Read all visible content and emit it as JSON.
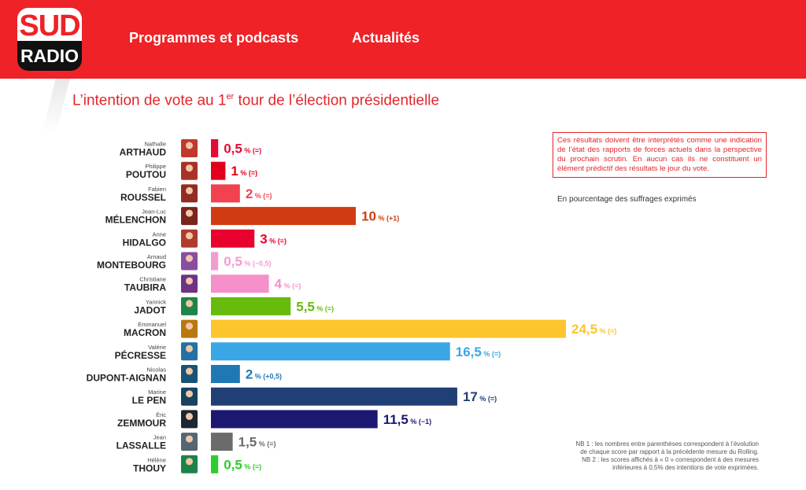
{
  "header": {
    "logo_top": "SUD",
    "logo_bottom": "RADIO",
    "nav": [
      "Programmes et podcasts",
      "Actualités"
    ]
  },
  "colors": {
    "brand": "#ee2227",
    "title": "#e2262b"
  },
  "notes": {
    "disclaimer": "Ces résultats doivent être interprétés comme une indication de l’état des rapports de forces actuels dans la perspective du prochain scrutin. En aucun cas ils ne constituent un élément prédictif des résultats le jour du vote.",
    "unit": "En pourcentage des suffrages exprimés",
    "nb1_line1": "NB 1 : les nombres entre parenthèses correspondent à l’évolution",
    "nb1_line2": "de chaque score par rapport à la précédente mesure du Rolling.",
    "nb2_line1": "NB 2 : les scores affichés à « 0 » correspondent à des mesures",
    "nb2_line2": "inférieures à 0,5% des intentions de vote exprimées."
  },
  "chart_data": {
    "type": "bar",
    "orientation": "horizontal",
    "title_pre": "L’intention de vote au 1",
    "title_sup": "er",
    "title_post": " tour de l’élection présidentielle",
    "xlim": [
      0,
      24.5
    ],
    "bars": [
      {
        "first": "Nathalie",
        "last": "ARTHAUD",
        "value": 0.5,
        "label": "0,5",
        "change": "(=)",
        "color": "#e30b33",
        "avatar_bg": "#c0392b"
      },
      {
        "first": "Philippe",
        "last": "POUTOU",
        "value": 1,
        "label": "1",
        "change": "(=)",
        "color": "#e3001b",
        "avatar_bg": "#a93226"
      },
      {
        "first": "Fabien",
        "last": "ROUSSEL",
        "value": 2,
        "label": "2",
        "change": "(=)",
        "color": "#f2424f",
        "avatar_bg": "#922b21"
      },
      {
        "first": "Jean-Luc",
        "last": "MÉLENCHON",
        "value": 10,
        "label": "10",
        "change": "(+1)",
        "color": "#d13b12",
        "avatar_bg": "#7b241c"
      },
      {
        "first": "Anne",
        "last": "HIDALGO",
        "value": 3,
        "label": "3",
        "change": "(=)",
        "color": "#e8002e",
        "avatar_bg": "#b03a2e"
      },
      {
        "first": "Arnaud",
        "last": "MONTEBOURG",
        "value": 0.5,
        "label": "0,5",
        "change": "(−0,5)",
        "color": "#f29ccf",
        "avatar_bg": "#884ea0"
      },
      {
        "first": "Christiane",
        "last": "TAUBIRA",
        "value": 4,
        "label": "4",
        "change": "(=)",
        "color": "#f690cb",
        "avatar_bg": "#6c3483"
      },
      {
        "first": "Yannick",
        "last": "JADOT",
        "value": 5.5,
        "label": "5,5",
        "change": "(=)",
        "color": "#66bb0d",
        "avatar_bg": "#1e8449"
      },
      {
        "first": "Emmanuel",
        "last": "MACRON",
        "value": 24.5,
        "label": "24,5",
        "change": "(=)",
        "color": "#fcc52b",
        "avatar_bg": "#b9770e"
      },
      {
        "first": "Valérie",
        "last": "PÉCRESSE",
        "value": 16.5,
        "label": "16,5",
        "change": "(=)",
        "color": "#3aa6e6",
        "avatar_bg": "#2471a3"
      },
      {
        "first": "Nicolas",
        "last": "DUPONT-AIGNAN",
        "value": 2,
        "label": "2",
        "change": "(+0,5)",
        "color": "#1f78b4",
        "avatar_bg": "#1a5276"
      },
      {
        "first": "Marine",
        "last": "LE PEN",
        "value": 17,
        "label": "17",
        "change": "(=)",
        "color": "#203f74",
        "avatar_bg": "#154360"
      },
      {
        "first": "Éric",
        "last": "ZEMMOUR",
        "value": 11.5,
        "label": "11,5",
        "change": "(−1)",
        "color": "#1c1872",
        "avatar_bg": "#1b2631"
      },
      {
        "first": "Jean",
        "last": "LASSALLE",
        "value": 1.5,
        "label": "1,5",
        "change": "(=)",
        "color": "#6b6b6b",
        "avatar_bg": "#566573"
      },
      {
        "first": "Hélène",
        "last": "THOUY",
        "value": 0.5,
        "label": "0,5",
        "change": "(=)",
        "color": "#2ecc2e",
        "avatar_bg": "#1d8348"
      }
    ]
  }
}
